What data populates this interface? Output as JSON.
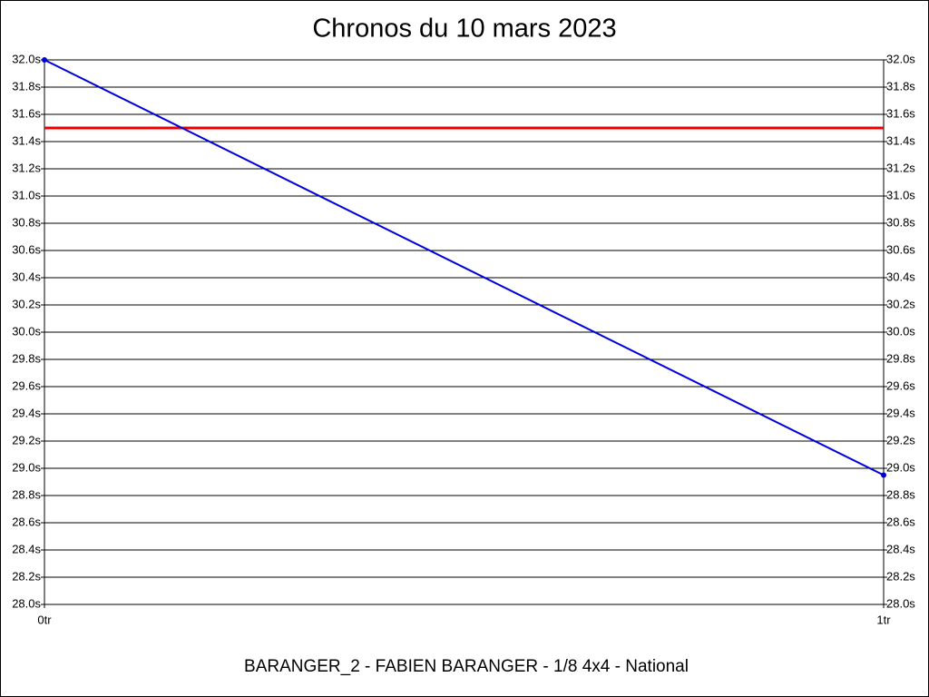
{
  "chart_data": {
    "type": "line",
    "title": "Chronos du 10 mars 2023",
    "xlabel": "BARANGER_2 - FABIEN BARANGER - 1/8 4x4 - National",
    "x": [
      0,
      1
    ],
    "series": [
      {
        "color": "#0000dd",
        "values": [
          32.0,
          28.95
        ]
      }
    ],
    "reference_line": {
      "value": 31.5,
      "color": "#ee0000"
    },
    "xlim": [
      0,
      1
    ],
    "xticks": [
      {
        "value": 0,
        "label": "0tr"
      },
      {
        "value": 1,
        "label": "1tr"
      }
    ],
    "ylim": [
      28.0,
      32.0
    ],
    "yticks": [
      {
        "value": 28.0,
        "label": "28.0s"
      },
      {
        "value": 28.2,
        "label": "28.2s"
      },
      {
        "value": 28.4,
        "label": "28.4s"
      },
      {
        "value": 28.6,
        "label": "28.6s"
      },
      {
        "value": 28.8,
        "label": "28.8s"
      },
      {
        "value": 29.0,
        "label": "29.0s"
      },
      {
        "value": 29.2,
        "label": "29.2s"
      },
      {
        "value": 29.4,
        "label": "29.4s"
      },
      {
        "value": 29.6,
        "label": "29.6s"
      },
      {
        "value": 29.8,
        "label": "29.8s"
      },
      {
        "value": 30.0,
        "label": "30.0s"
      },
      {
        "value": 30.2,
        "label": "30.2s"
      },
      {
        "value": 30.4,
        "label": "30.4s"
      },
      {
        "value": 30.6,
        "label": "30.6s"
      },
      {
        "value": 30.8,
        "label": "30.8s"
      },
      {
        "value": 31.0,
        "label": "31.0s"
      },
      {
        "value": 31.2,
        "label": "31.2s"
      },
      {
        "value": 31.4,
        "label": "31.4s"
      },
      {
        "value": 31.6,
        "label": "31.6s"
      },
      {
        "value": 31.8,
        "label": "31.8s"
      },
      {
        "value": 32.0,
        "label": "32.0s"
      }
    ],
    "grid": true
  }
}
